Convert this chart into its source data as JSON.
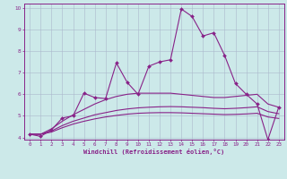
{
  "xlabel": "Windchill (Refroidissement éolien,°C)",
  "xlim": [
    -0.5,
    23.5
  ],
  "ylim": [
    3.9,
    10.2
  ],
  "xticks": [
    0,
    1,
    2,
    3,
    4,
    5,
    6,
    7,
    8,
    9,
    10,
    11,
    12,
    13,
    14,
    15,
    16,
    17,
    18,
    19,
    20,
    21,
    22,
    23
  ],
  "yticks": [
    4,
    5,
    6,
    7,
    8,
    9,
    10
  ],
  "bg_color": "#cce9e9",
  "line_color": "#882288",
  "grid_color": "#aab8cc",
  "x": [
    0,
    1,
    2,
    3,
    4,
    5,
    6,
    7,
    8,
    9,
    10,
    11,
    12,
    13,
    14,
    15,
    16,
    17,
    18,
    19,
    20,
    21,
    22,
    23
  ],
  "y_jagged": [
    4.15,
    4.05,
    4.35,
    4.9,
    5.0,
    6.05,
    5.85,
    5.8,
    7.45,
    6.55,
    6.0,
    7.3,
    7.5,
    7.6,
    9.95,
    9.6,
    8.7,
    8.85,
    7.8,
    6.5,
    6.0,
    5.55,
    3.9,
    5.4
  ],
  "y_upper": [
    4.15,
    4.15,
    4.4,
    4.75,
    5.05,
    5.3,
    5.55,
    5.75,
    5.9,
    6.0,
    6.05,
    6.05,
    6.05,
    6.05,
    6.0,
    5.95,
    5.9,
    5.85,
    5.85,
    5.9,
    5.95,
    6.0,
    5.55,
    5.4
  ],
  "y_mid": [
    4.15,
    4.15,
    4.3,
    4.55,
    4.75,
    4.9,
    5.05,
    5.15,
    5.25,
    5.32,
    5.37,
    5.4,
    5.42,
    5.43,
    5.42,
    5.4,
    5.38,
    5.35,
    5.33,
    5.35,
    5.38,
    5.42,
    5.2,
    5.1
  ],
  "y_lower": [
    4.15,
    4.15,
    4.25,
    4.45,
    4.62,
    4.75,
    4.86,
    4.95,
    5.02,
    5.08,
    5.12,
    5.14,
    5.15,
    5.15,
    5.14,
    5.12,
    5.1,
    5.08,
    5.06,
    5.07,
    5.09,
    5.12,
    4.95,
    4.88
  ]
}
